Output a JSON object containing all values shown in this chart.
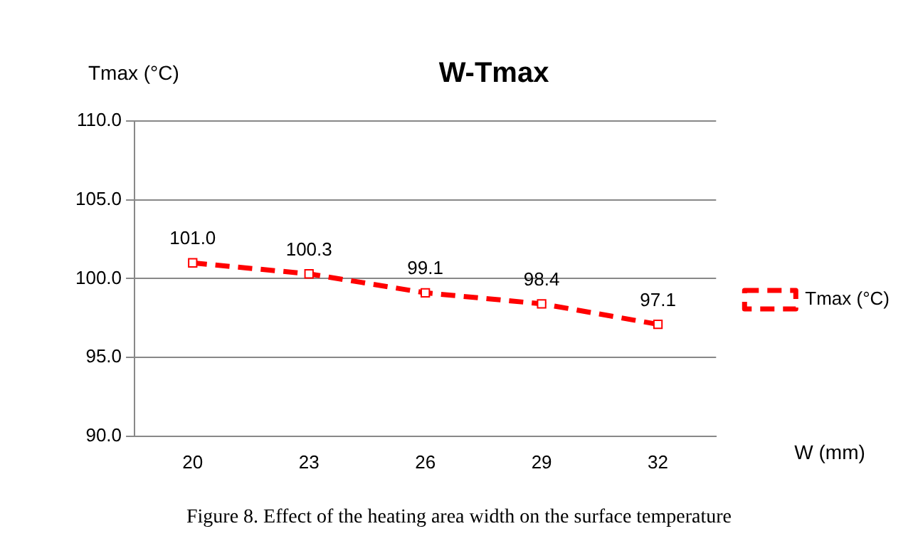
{
  "chart_data": {
    "type": "line",
    "title": "W-Tmax",
    "ylabel": "Tmax (°C)",
    "xlabel": "W (mm)",
    "categories": [
      "20",
      "23",
      "26",
      "29",
      "32"
    ],
    "series": [
      {
        "name": "Tmax (°C)",
        "color": "#ff0000",
        "values": [
          101.0,
          100.3,
          99.1,
          98.4,
          97.1
        ],
        "value_labels": [
          "101.0",
          "100.3",
          "99.1",
          "98.4",
          "97.1"
        ]
      }
    ],
    "ylim": [
      90,
      110
    ],
    "yticks": [
      {
        "value": 90,
        "label": "90.0"
      },
      {
        "value": 95,
        "label": "95.0"
      },
      {
        "value": 100,
        "label": "100.0"
      },
      {
        "value": 105,
        "label": "105.0"
      },
      {
        "value": 110,
        "label": "110.0"
      }
    ],
    "grid": "y",
    "legend": "right",
    "marker": "square",
    "line_style": "dashed",
    "annotations": [
      "Figure 8. Effect of the heating area width on the surface temperature"
    ]
  }
}
